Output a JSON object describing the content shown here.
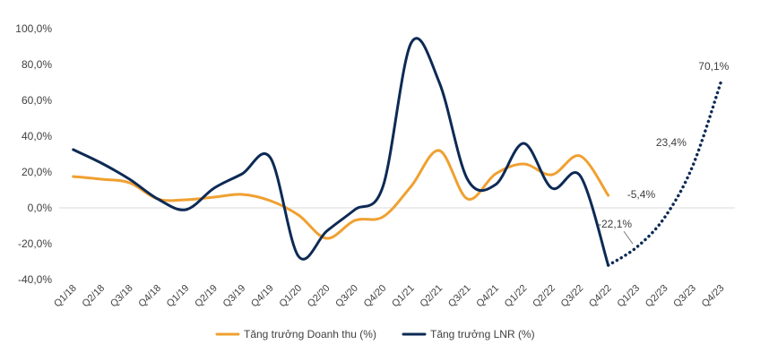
{
  "chart_data": {
    "type": "line",
    "categories": [
      "Q1/18",
      "Q2/18",
      "Q3/18",
      "Q4/18",
      "Q1/19",
      "Q2/19",
      "Q3/19",
      "Q4/19",
      "Q1/20",
      "Q2/20",
      "Q3/20",
      "Q4/20",
      "Q1/21",
      "Q2/21",
      "Q3/21",
      "Q4/21",
      "Q1/22",
      "Q2/22",
      "Q3/22",
      "Q4/22",
      "Q1/23",
      "Q2/23",
      "Q3/23",
      "Q4/23"
    ],
    "ylim": [
      -40,
      100
    ],
    "yticks": [
      -40,
      -20,
      0,
      20,
      40,
      60,
      80,
      100
    ],
    "ytick_labels": [
      "-40,0%",
      "-20,0%",
      "0,0%",
      "20,0%",
      "40,0%",
      "60,0%",
      "80,0%",
      "100,0%"
    ],
    "grid": false,
    "legend_position": "bottom",
    "series": [
      {
        "name": "Tăng trưởng Doanh thu (%)",
        "color": "#F0A030",
        "style": "solid",
        "values": [
          17.5,
          16,
          14,
          5,
          4.5,
          6,
          7.5,
          4,
          -4,
          -17,
          -7,
          -5,
          12,
          32,
          5,
          19,
          24.5,
          18.5,
          29,
          7,
          null,
          null,
          null,
          null
        ]
      },
      {
        "name": "Tăng trưởng LNR (%)",
        "color": "#0D2A55",
        "style": "solid",
        "values": [
          32.5,
          25,
          16,
          5,
          -1,
          11,
          19,
          28,
          -27,
          -13,
          -1,
          12,
          92,
          70,
          16,
          13,
          36,
          11,
          18,
          -32,
          null,
          null,
          null,
          null
        ]
      },
      {
        "name": "",
        "legend": false,
        "color": "#0D2A55",
        "style": "dotted",
        "values": [
          null,
          null,
          null,
          null,
          null,
          null,
          null,
          null,
          null,
          null,
          null,
          null,
          null,
          null,
          null,
          null,
          null,
          null,
          null,
          -32,
          -22.1,
          -5.4,
          23.4,
          70.1
        ]
      }
    ],
    "annotations": [
      {
        "category": "Q1/23",
        "value": -22.1,
        "text": "-22,1%"
      },
      {
        "category": "Q2/23",
        "value": -5.4,
        "text": "-5,4%"
      },
      {
        "category": "Q3/23",
        "value": 23.4,
        "text": "23,4%"
      },
      {
        "category": "Q4/23",
        "value": 70.1,
        "text": "70,1%"
      }
    ]
  }
}
